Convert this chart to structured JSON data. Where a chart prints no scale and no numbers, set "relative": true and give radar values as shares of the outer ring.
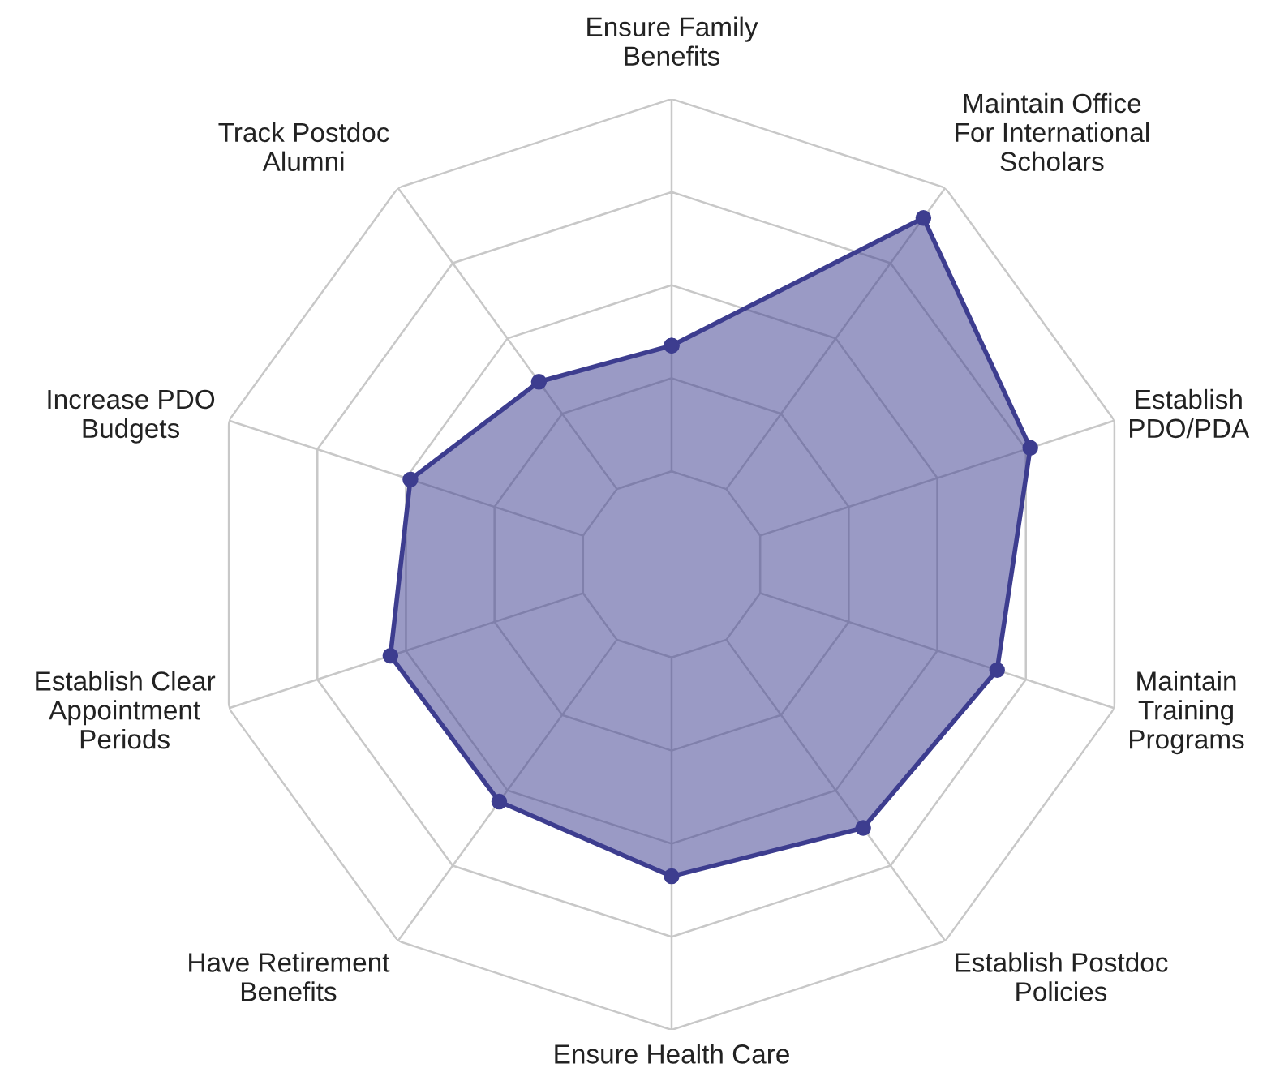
{
  "chart_data": {
    "type": "radar",
    "relative": true,
    "grid": true,
    "marker": "circle",
    "line_style": "solid",
    "categories": [
      "Ensure Family\nBenefits",
      "Maintain Office\nFor International\nScholars",
      "Establish\nPDO/PDA",
      "Maintain\nTraining\nPrograms",
      "Establish Postdoc\nPolicies",
      "Ensure Health Care",
      "Have Retirement\nBenefits",
      "Establish Clear\nAppointment\nPeriods",
      "Increase PDO\nBudgets",
      "Track Postdoc\nAlumni"
    ],
    "series": [
      {
        "color": "#3d3d8f",
        "values": [
          0.47,
          0.92,
          0.81,
          0.735,
          0.7,
          0.67,
          0.63,
          0.635,
          0.59,
          0.485
        ]
      }
    ]
  }
}
